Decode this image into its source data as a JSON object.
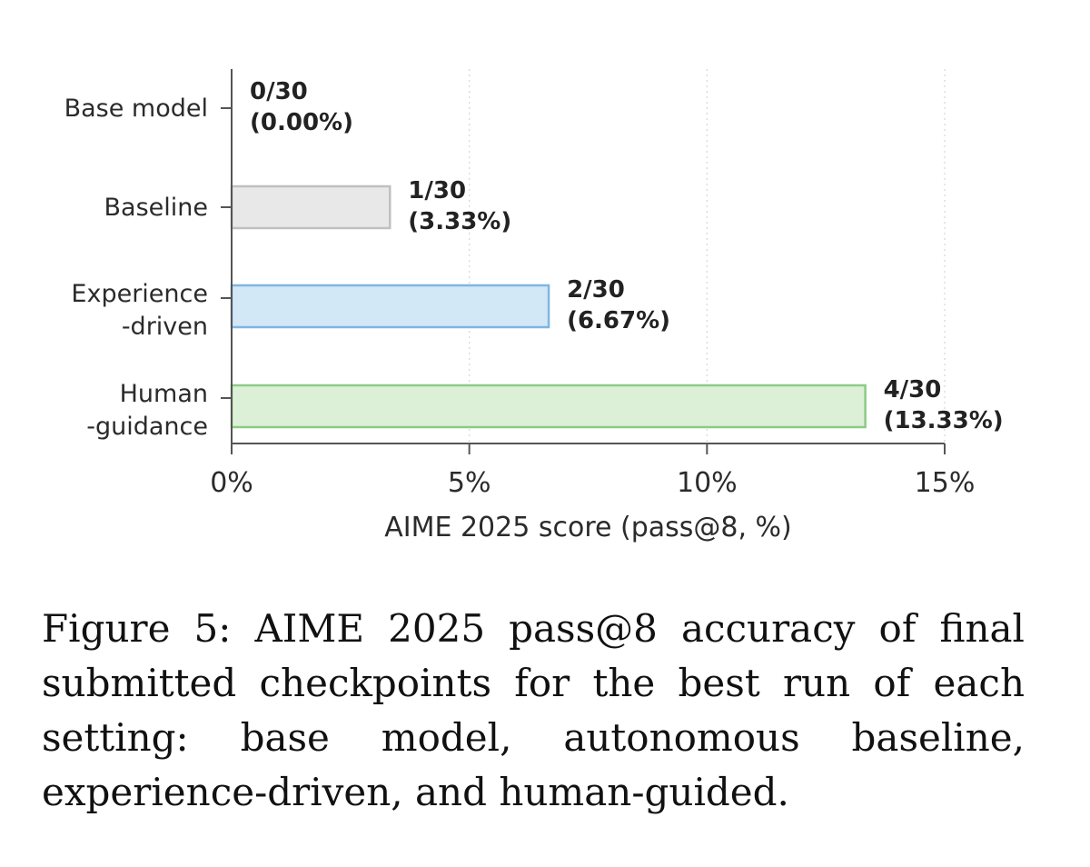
{
  "chart_data": {
    "type": "bar",
    "orientation": "horizontal",
    "categories": [
      [
        "Base model"
      ],
      [
        "Baseline"
      ],
      [
        "Experience",
        "-driven"
      ],
      [
        "Human",
        "-guidance"
      ]
    ],
    "values": [
      0.0,
      3.33,
      6.67,
      13.33
    ],
    "value_labels": [
      [
        "0/30",
        "(0.00%)"
      ],
      [
        "1/30",
        "(3.33%)"
      ],
      [
        "2/30",
        "(6.67%)"
      ],
      [
        "4/30",
        "(13.33%)"
      ]
    ],
    "bar_fill_colors": [
      "#e8e8e8",
      "#e8e8e8",
      "#d2e8f7",
      "#dcf0d7"
    ],
    "bar_edge_colors": [
      "#c0c0c0",
      "#c0c0c0",
      "#7fb6e2",
      "#8ccb86"
    ],
    "xlabel": "AIME 2025 score (pass@8, %)",
    "xlim": [
      0,
      15
    ],
    "xticks": [
      0,
      5,
      10,
      15
    ],
    "xtick_labels": [
      "0%",
      "5%",
      "10%",
      "15%"
    ],
    "grid": "vertical dotted"
  },
  "caption": "Figure 5:  AIME 2025 pass@8 accuracy of fi­nal submitted checkpoints for the best run of each setting:  base model, autonomous baseline, experience-driven, and human-guided."
}
